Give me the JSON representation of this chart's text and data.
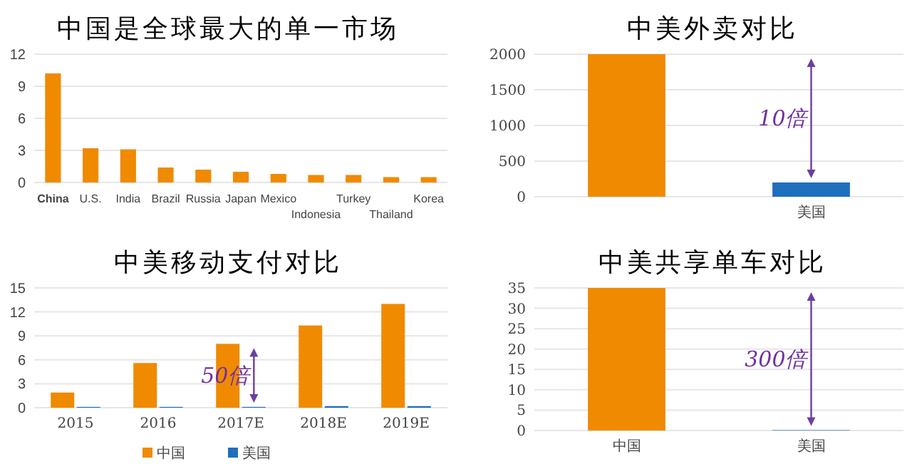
{
  "chart_data": [
    {
      "type": "bar",
      "title": "中国是全球最大的单一市场",
      "categories": [
        "China",
        "U.S.",
        "India",
        "Brazil",
        "Russia",
        "Japan",
        "Mexico",
        "Indonesia",
        "Turkey",
        "Thailand",
        "Korea"
      ],
      "values": [
        10.2,
        3.2,
        3.1,
        1.4,
        1.2,
        1.0,
        0.8,
        0.7,
        0.7,
        0.5,
        0.5
      ],
      "color": "#f08a00",
      "ylim": [
        0,
        12
      ],
      "yticks": [
        0,
        3,
        6,
        9,
        12
      ],
      "grid": "y"
    },
    {
      "type": "bar",
      "title": "中美外卖对比",
      "categories": [
        null,
        "美国"
      ],
      "values": [
        2000,
        200
      ],
      "colors": [
        "#f08a00",
        "#1f6fbf"
      ],
      "ylim": [
        0,
        2000
      ],
      "yticks": [
        0,
        500,
        1000,
        1500,
        2000
      ],
      "grid": "y",
      "annotations": [
        "10倍"
      ]
    },
    {
      "type": "bar",
      "title": "中美移动支付对比",
      "categories": [
        "2015",
        "2016",
        "2017E",
        "2018E",
        "2019E"
      ],
      "series": [
        {
          "name": "中国",
          "color": "#f08a00",
          "values": [
            1.9,
            5.6,
            8.0,
            10.3,
            13.0
          ]
        },
        {
          "name": "美国",
          "color": "#1f6fbf",
          "values": [
            0.1,
            0.1,
            0.1,
            0.2,
            0.2
          ]
        }
      ],
      "ylim": [
        0,
        15
      ],
      "yticks": [
        0,
        3,
        6,
        9,
        12,
        15
      ],
      "grid": "y",
      "legend": "bottom",
      "annotations": [
        "50倍"
      ]
    },
    {
      "type": "bar",
      "title": "中美共享单车对比",
      "categories": [
        "中国",
        "美国"
      ],
      "values": [
        35,
        0.1
      ],
      "colors": [
        "#f08a00",
        "#1f6fbf"
      ],
      "ylim": [
        0,
        35
      ],
      "yticks": [
        0,
        5,
        10,
        15,
        20,
        25,
        30,
        35
      ],
      "grid": "y",
      "annotations": [
        "300倍"
      ]
    }
  ]
}
